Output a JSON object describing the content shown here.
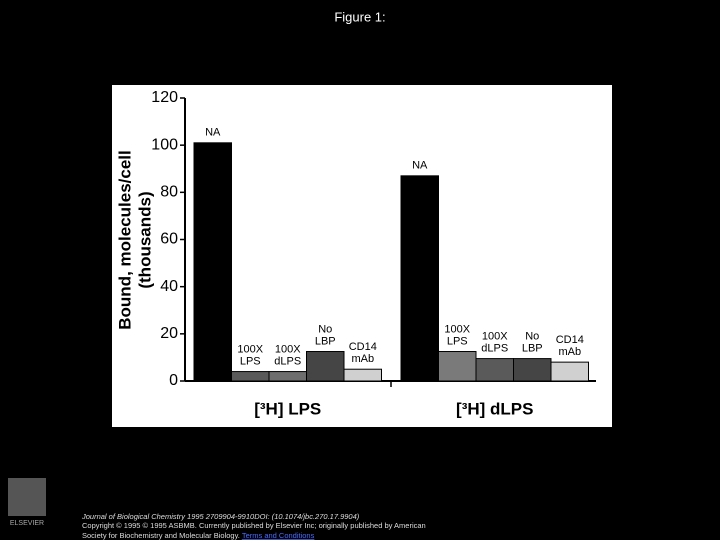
{
  "header": {
    "title": "Figure 1:"
  },
  "chart_data": {
    "type": "bar",
    "ylabel": [
      "Bound, molecules/cell",
      "(thousands)"
    ],
    "ylim": [
      0,
      120
    ],
    "yticks": [
      0,
      20,
      40,
      60,
      80,
      100,
      120
    ],
    "groups": [
      {
        "name": "[³H] LPS",
        "categories": [
          [
            "NA"
          ],
          [
            "100X",
            "LPS"
          ],
          [
            "100X",
            "dLPS"
          ],
          [
            "No",
            "LBP"
          ],
          [
            "CD14",
            "mAb"
          ]
        ],
        "values": [
          101,
          4,
          4,
          12.5,
          5
        ],
        "colors": [
          "#000000",
          "#5a5a5a",
          "#6e6e6e",
          "#454545",
          "#d0d0d0"
        ]
      },
      {
        "name": "[³H] dLPS",
        "categories": [
          [
            "NA"
          ],
          [
            "100X",
            "LPS"
          ],
          [
            "100X",
            "dLPS"
          ],
          [
            "No",
            "LBP"
          ],
          [
            "CD14",
            "mAb"
          ]
        ],
        "values": [
          87,
          12.5,
          9.5,
          9.5,
          8
        ],
        "colors": [
          "#000000",
          "#7a7a7a",
          "#5a5a5a",
          "#454545",
          "#d0d0d0"
        ]
      }
    ]
  },
  "footer": {
    "citation": "Journal of Biological Chemistry 1995 2709904-9910DOI: (10.1074/jbc.270.17.9904)",
    "copyright": "Copyright © 1995 © 1995 ASBMB. Currently published by Elsevier Inc; originally published by American",
    "copyright_cont": "Society for Biochemistry and Molecular Biology.",
    "link": "Terms and Conditions",
    "logo": "ELSEVIER"
  }
}
